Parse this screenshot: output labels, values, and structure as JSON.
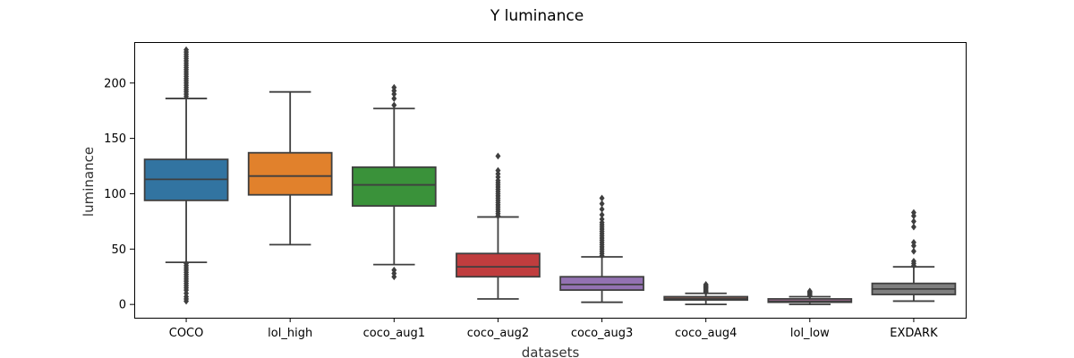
{
  "chart_data": {
    "type": "box",
    "title": "Y luminance",
    "xlabel": "datasets",
    "ylabel": "luminance",
    "ylim": [
      -12,
      237
    ],
    "yticks": [
      0,
      50,
      100,
      150,
      200
    ],
    "grid": false,
    "categories": [
      "COCO",
      "lol_high",
      "coco_aug1",
      "coco_aug2",
      "coco_aug3",
      "coco_aug4",
      "lol_low",
      "EXDARK"
    ],
    "boxes": [
      {
        "category": "COCO",
        "color": "#3274a1",
        "whisker_low": 38,
        "q1": 94,
        "median": 113,
        "q3": 131,
        "whisker_high": 186,
        "outliers": [
          3,
          5,
          7,
          10,
          13,
          15,
          17,
          19,
          21,
          23,
          25,
          27,
          29,
          31,
          33,
          35,
          37,
          188,
          190,
          192,
          194,
          196,
          198,
          200,
          202,
          204,
          206,
          208,
          210,
          212,
          214,
          216,
          218,
          220,
          222,
          224,
          226,
          228,
          230
        ]
      },
      {
        "category": "lol_high",
        "color": "#e1812c",
        "whisker_low": 54,
        "q1": 99,
        "median": 116,
        "q3": 137,
        "whisker_high": 192,
        "outliers": []
      },
      {
        "category": "coco_aug1",
        "color": "#3a923a",
        "whisker_low": 36,
        "q1": 89,
        "median": 108,
        "q3": 124,
        "whisker_high": 177,
        "outliers": [
          25,
          28,
          31,
          180,
          186,
          190,
          193,
          196
        ]
      },
      {
        "category": "coco_aug2",
        "color": "#c03d3e",
        "whisker_low": 5,
        "q1": 25,
        "median": 34,
        "q3": 46,
        "whisker_high": 79,
        "outliers": [
          80,
          82,
          84,
          86,
          88,
          90,
          92,
          94,
          96,
          98,
          100,
          102,
          104,
          106,
          108,
          110,
          112,
          115,
          118,
          121,
          134
        ]
      },
      {
        "category": "coco_aug3",
        "color": "#9372b2",
        "whisker_low": 2,
        "q1": 13,
        "median": 18,
        "q3": 25,
        "whisker_high": 43,
        "outliers": [
          44,
          46,
          48,
          50,
          52,
          54,
          56,
          58,
          60,
          62,
          64,
          66,
          68,
          70,
          72,
          74,
          77,
          81,
          86,
          91,
          96
        ]
      },
      {
        "category": "coco_aug4",
        "color": "#845b53",
        "whisker_low": 0,
        "q1": 4,
        "median": 5,
        "q3": 7,
        "whisker_high": 10,
        "outliers": [
          11,
          12,
          13,
          14,
          15,
          16,
          17,
          18
        ]
      },
      {
        "category": "lol_low",
        "color": "#d684bd",
        "whisker_low": 0,
        "q1": 2,
        "median": 3,
        "q3": 5,
        "whisker_high": 7,
        "outliers": [
          8,
          9,
          10,
          11,
          12
        ]
      },
      {
        "category": "EXDARK",
        "color": "#7f7f7f",
        "whisker_low": 3,
        "q1": 9,
        "median": 14,
        "q3": 19,
        "whisker_high": 34,
        "outliers": [
          35,
          37,
          39,
          48,
          53,
          56,
          70,
          75,
          80,
          83
        ]
      }
    ]
  }
}
